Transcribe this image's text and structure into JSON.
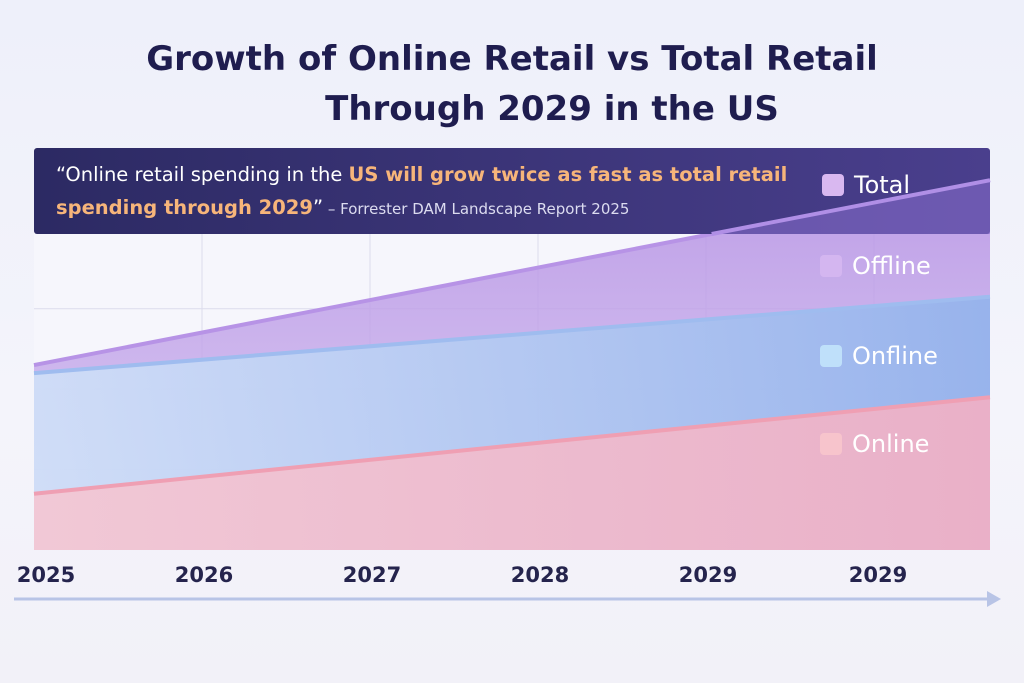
{
  "title": {
    "line1": "Growth of Online Retail vs Total Retail",
    "line2": "Through 2029 in the US"
  },
  "quote": {
    "part1": "“Online retail spending in the ",
    "highlight1": "US will grow twice as fast as total retail",
    "highlight2": "spending through 2029",
    "part2": "”",
    "source": " – Forrester DAM Landscape Report 2025"
  },
  "colors": {
    "banner": "#3f3a7e",
    "total": "#b89be6",
    "offline": "#a9c6f1",
    "online": "#f3b7c9",
    "axis_arrow": "#b8c4e6"
  },
  "chart_data": {
    "type": "area",
    "title": "Growth of Online Retail vs Total Retail Through 2029 in the US",
    "x": [
      "2025",
      "2026",
      "2027",
      "2028",
      "2029",
      "2029"
    ],
    "xlabel": "",
    "ylabel": "",
    "grid": true,
    "legend": [
      {
        "name": "Total",
        "swatch": "#d9b8f0",
        "text_color": "#ffffff"
      },
      {
        "name": "Offline",
        "swatch": "#d4b6f0",
        "text_color": "#ffffff"
      },
      {
        "name": "Onfline",
        "swatch": "#bfe0fa",
        "text_color": "#ffffff"
      },
      {
        "name": "Online",
        "swatch": "#f7c4cc",
        "text_color": "#ffffff"
      }
    ],
    "legend_position": "right",
    "series": [
      {
        "name": "Total",
        "start": 46,
        "end": 92,
        "color": "#b89be6"
      },
      {
        "name": "Offline",
        "start": 44,
        "end": 63,
        "color": "#a9c6f1"
      },
      {
        "name": "Online",
        "start": 14,
        "end": 38,
        "color": "#f3b7c9"
      }
    ],
    "ylim": [
      0,
      100
    ]
  }
}
